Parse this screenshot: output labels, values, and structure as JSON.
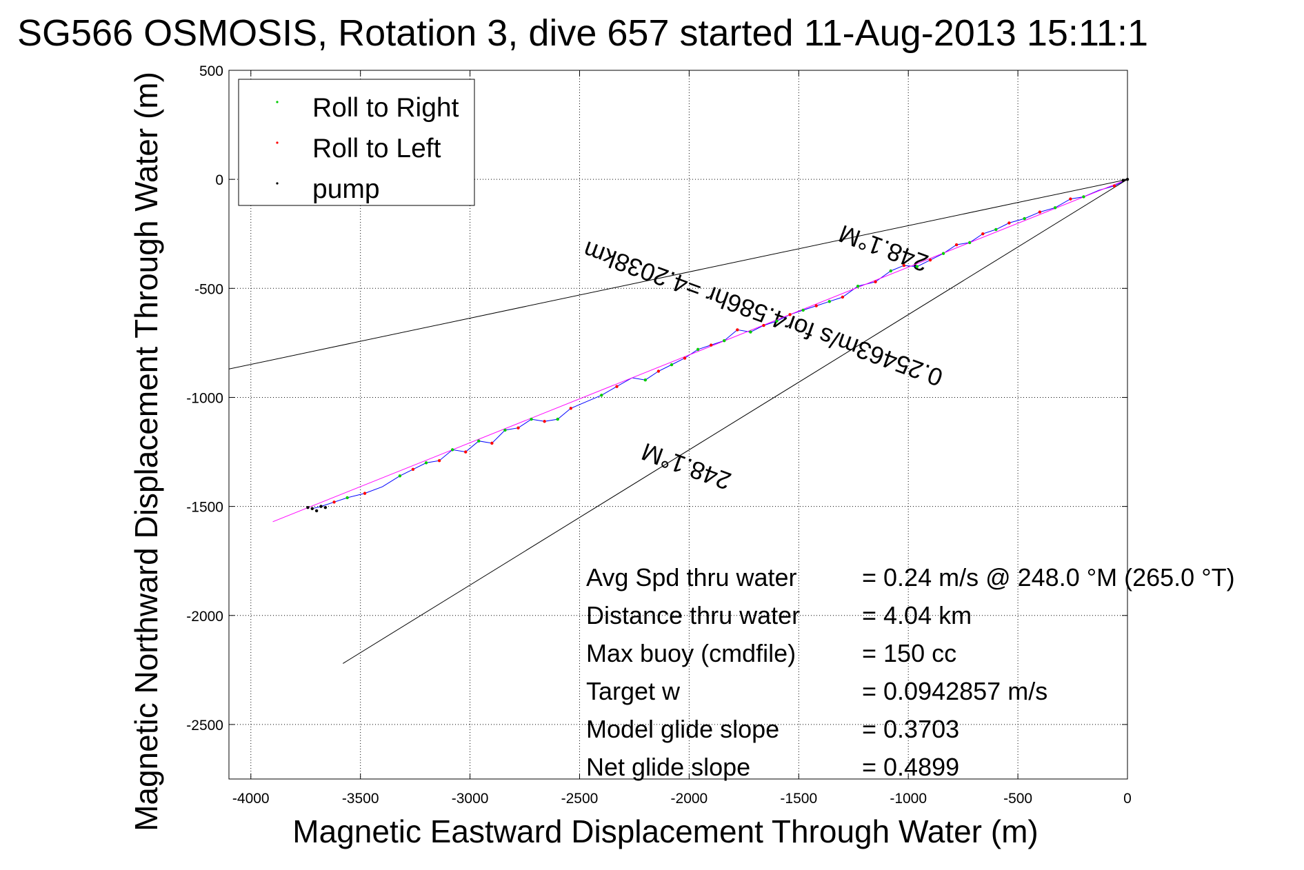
{
  "chart_data": {
    "type": "line",
    "title": "SG566 OSMOSIS, Rotation 3, dive 657 started 11-Aug-2013 15:11:1",
    "xlabel": "Magnetic Eastward Displacement Through Water (m)",
    "ylabel": "Magnetic Northward Displacement Through Water (m)",
    "xlim": [
      -4100,
      0
    ],
    "ylim": [
      -2750,
      500
    ],
    "xticks": [
      -4000,
      -3500,
      -3000,
      -2500,
      -2000,
      -1500,
      -1000,
      -500,
      0
    ],
    "yticks": [
      -2500,
      -2000,
      -1500,
      -1000,
      -500,
      0,
      500
    ],
    "grid": true,
    "legend_position": "top-left",
    "legend": [
      {
        "label": "Roll to Right",
        "color": "#00cc00"
      },
      {
        "label": "Roll to Left",
        "color": "#ff0000"
      },
      {
        "label": "pump",
        "color": "#000000"
      }
    ],
    "series": [
      {
        "color": "#0000ff",
        "x": [
          0,
          -60,
          -130,
          -200,
          -260,
          -330,
          -400,
          -470,
          -540,
          -600,
          -660,
          -720,
          -780,
          -840,
          -900,
          -960,
          -1020,
          -1080,
          -1150,
          -1230,
          -1300,
          -1360,
          -1420,
          -1480,
          -1540,
          -1600,
          -1660,
          -1720,
          -1780,
          -1840,
          -1900,
          -1960,
          -2020,
          -2080,
          -2140,
          -2200,
          -2260,
          -2330,
          -2400,
          -2470,
          -2540,
          -2600,
          -2660,
          -2720,
          -2780,
          -2840,
          -2900,
          -2960,
          -3020,
          -3080,
          -3140,
          -3200,
          -3260,
          -3320,
          -3400,
          -3480,
          -3560,
          -3620,
          -3680,
          -3720
        ],
        "y": [
          0,
          -30,
          -50,
          -80,
          -90,
          -130,
          -150,
          -180,
          -200,
          -230,
          -250,
          -290,
          -300,
          -340,
          -370,
          -400,
          -395,
          -420,
          -470,
          -490,
          -540,
          -560,
          -580,
          -600,
          -620,
          -650,
          -670,
          -700,
          -690,
          -740,
          -760,
          -780,
          -820,
          -850,
          -880,
          -920,
          -910,
          -950,
          -990,
          -1020,
          -1050,
          -1100,
          -1110,
          -1100,
          -1140,
          -1150,
          -1210,
          -1200,
          -1250,
          -1240,
          -1290,
          -1300,
          -1330,
          -1360,
          -1410,
          -1440,
          -1460,
          -1480,
          -1500,
          -1510
        ]
      },
      {
        "color": "#ff00ff",
        "x": [
          0,
          -3900
        ],
        "y": [
          0,
          -1570
        ]
      },
      {
        "color": "#000000",
        "x": [
          0,
          -4100
        ],
        "y": [
          0,
          -870
        ]
      },
      {
        "color": "#000000",
        "x": [
          0,
          -3580
        ],
        "y": [
          0,
          -2220
        ]
      }
    ],
    "markers": {
      "roll_right": {
        "color": "#00cc00",
        "x": [
          -200,
          -330,
          -470,
          -600,
          -720,
          -840,
          -960,
          -1080,
          -1230,
          -1360,
          -1480,
          -1600,
          -1720,
          -1840,
          -1960,
          -2080,
          -2200,
          -2400,
          -2600,
          -2720,
          -2840,
          -2960,
          -3080,
          -3200,
          -3320,
          -3560
        ],
        "y": [
          -80,
          -130,
          -180,
          -230,
          -290,
          -340,
          -400,
          -420,
          -490,
          -560,
          -600,
          -650,
          -700,
          -740,
          -780,
          -850,
          -920,
          -990,
          -1100,
          -1100,
          -1150,
          -1200,
          -1240,
          -1300,
          -1360,
          -1460
        ]
      },
      "roll_left": {
        "color": "#ff0000",
        "x": [
          -60,
          -260,
          -400,
          -540,
          -660,
          -780,
          -900,
          -1020,
          -1150,
          -1300,
          -1420,
          -1540,
          -1660,
          -1780,
          -1900,
          -2020,
          -2140,
          -2330,
          -2540,
          -2660,
          -2780,
          -2900,
          -3020,
          -3140,
          -3260,
          -3480,
          -3620
        ],
        "y": [
          -30,
          -90,
          -150,
          -200,
          -250,
          -300,
          -370,
          -395,
          -470,
          -540,
          -580,
          -620,
          -670,
          -690,
          -760,
          -820,
          -880,
          -950,
          -1050,
          -1110,
          -1140,
          -1210,
          -1250,
          -1290,
          -1330,
          -1440,
          -1480
        ]
      },
      "pump": {
        "color": "#000000",
        "x": [
          0,
          -20,
          -3680,
          -3700,
          -3720,
          -3660,
          -3740
        ],
        "y": [
          0,
          -5,
          -1500,
          -1520,
          -1510,
          -1505,
          -1505
        ]
      }
    },
    "annotations": [
      {
        "text": "248.1°M",
        "x": -2000,
        "y": -1280,
        "rotation": 200
      },
      {
        "text": "248.1°M",
        "x": -1100,
        "y": -280,
        "rotation": 200
      },
      {
        "text": "0.25463m/s for4.586hr =4.2038km",
        "x": -1650,
        "y": -580,
        "rotation": 200
      }
    ],
    "stats": [
      {
        "label": "Avg Spd thru water",
        "value": "=  0.24 m/s @ 248.0 °M (265.0 °T)"
      },
      {
        "label": "Distance thru water",
        "value": "=  4.04 km"
      },
      {
        "label": "Max buoy (cmdfile)",
        "value": "= 150 cc"
      },
      {
        "label": "Target w",
        "value": "= 0.0942857 m/s"
      },
      {
        "label": "Model glide slope",
        "value": "= 0.3703"
      },
      {
        "label": "Net glide slope",
        "value": "= 0.4899"
      }
    ]
  }
}
